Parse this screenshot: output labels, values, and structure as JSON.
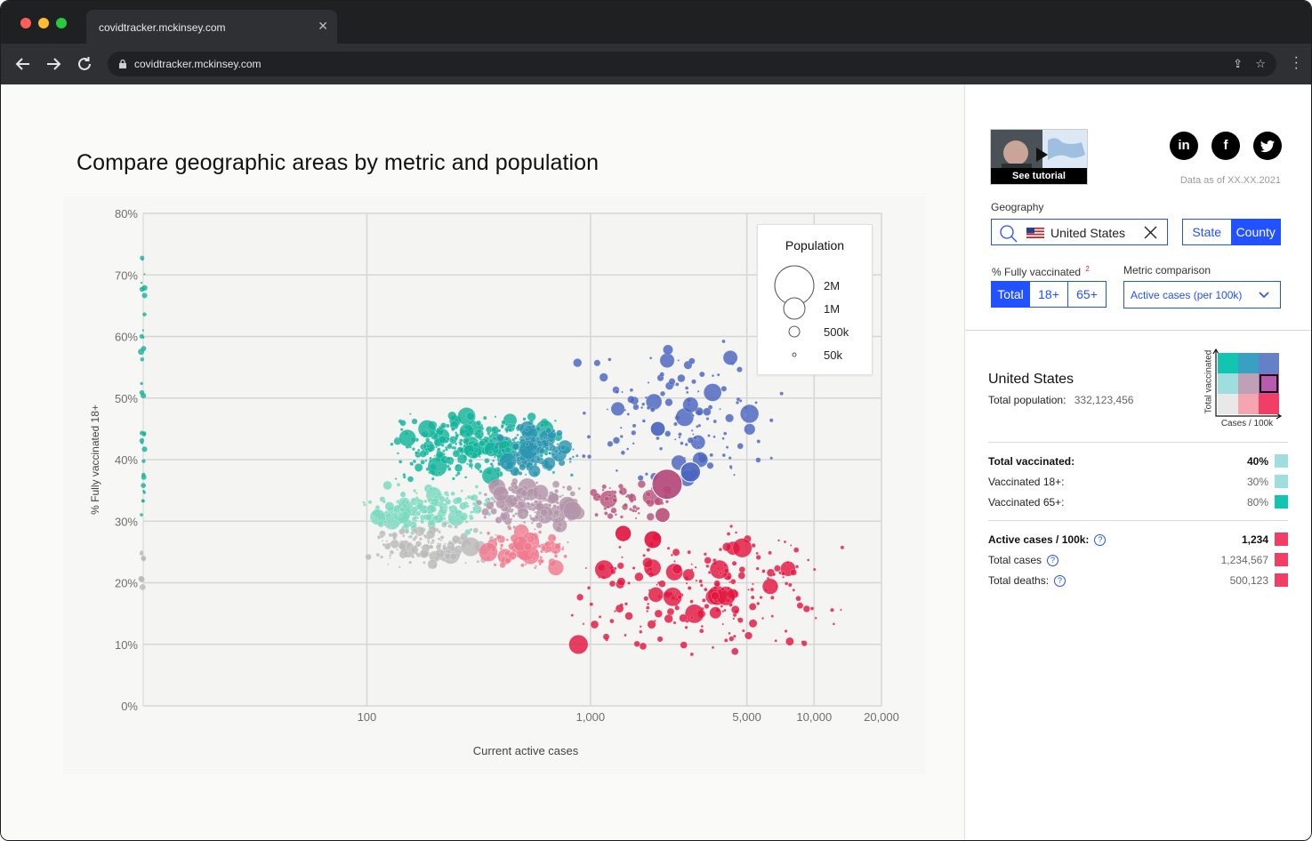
{
  "browser": {
    "tab_title": "covidtracker.mckinsey.com",
    "url": "covidtracker.mckinsey.com",
    "colors": {
      "close_dot": "#ff5f57",
      "min_dot": "#febc2e",
      "max_dot": "#28c840"
    }
  },
  "page": {
    "title": "Compare geographic areas by metric and population"
  },
  "chart_data": {
    "type": "scatter",
    "title": "Compare geographic areas by metric and population",
    "xlabel": "Current active cases",
    "ylabel": "% Fully vaccinated 18+",
    "x_scale": "log",
    "xlim": [
      10,
      20000
    ],
    "ylim": [
      0,
      80
    ],
    "x_ticks": [
      {
        "value": 100,
        "label": "100"
      },
      {
        "value": 1000,
        "label": "1,000"
      },
      {
        "value": 5000,
        "label": "5,000"
      },
      {
        "value": 10000,
        "label": "10,000"
      },
      {
        "value": 20000,
        "label": "20,000"
      }
    ],
    "y_ticks": [
      {
        "value": 0,
        "label": "0%"
      },
      {
        "value": 10,
        "label": "10%"
      },
      {
        "value": 20,
        "label": "20%"
      },
      {
        "value": 30,
        "label": "30%"
      },
      {
        "value": 40,
        "label": "40%"
      },
      {
        "value": 50,
        "label": "50%"
      },
      {
        "value": 60,
        "label": "60%"
      },
      {
        "value": 70,
        "label": "70%"
      },
      {
        "value": 80,
        "label": "80%"
      }
    ],
    "grid": true,
    "legend": {
      "title": "Population",
      "placement": "top-right",
      "items": [
        {
          "label": "2M",
          "population": 2000000
        },
        {
          "label": "1M",
          "population": 1000000
        },
        {
          "label": "500k",
          "population": 500000
        },
        {
          "label": "50k",
          "population": 50000
        }
      ]
    },
    "clusters": [
      {
        "name": "high-vax-low-cases",
        "color": "#10b39a",
        "x_range": [
          120,
          800
        ],
        "y_range": [
          36,
          48
        ],
        "n": 330
      },
      {
        "name": "high-vax-mid-cases",
        "color": "#2b95b0",
        "x_range": [
          350,
          900
        ],
        "y_range": [
          37,
          46
        ],
        "n": 140
      },
      {
        "name": "high-vax-high-cases",
        "color": "#4a64c0",
        "x_range": [
          800,
          8000
        ],
        "y_range": [
          35,
          60
        ],
        "n": 140
      },
      {
        "name": "mid-vax-low-cases",
        "color": "#7ad9bf",
        "x_range": [
          90,
          380
        ],
        "y_range": [
          28,
          36
        ],
        "n": 220
      },
      {
        "name": "mid-vax-mid-cases",
        "color": "#b294a8",
        "x_range": [
          300,
          950
        ],
        "y_range": [
          28,
          37
        ],
        "n": 200
      },
      {
        "name": "mid-vax-high-cases",
        "color": "#b8527a",
        "x_range": [
          900,
          2500
        ],
        "y_range": [
          30,
          37
        ],
        "n": 60
      },
      {
        "name": "low-vax-low-cases",
        "color": "#b9b9b9",
        "x_range": [
          90,
          400
        ],
        "y_range": [
          22,
          30
        ],
        "n": 160
      },
      {
        "name": "low-vax-mid-cases",
        "color": "#ef7a8f",
        "x_range": [
          300,
          900
        ],
        "y_range": [
          22,
          29
        ],
        "n": 120
      },
      {
        "name": "low-vax-high-cases",
        "color": "#e3163f",
        "x_range": [
          700,
          15000
        ],
        "y_range": [
          8,
          30
        ],
        "n": 230
      }
    ],
    "highlighted": [
      {
        "x": 2200,
        "y": 36,
        "population": 2000000,
        "color": "#b4487a"
      },
      {
        "x": 1900,
        "y": 27,
        "population": 500000,
        "color": "#e3163f"
      },
      {
        "x": 1400,
        "y": 28,
        "population": 400000,
        "color": "#e3163f"
      },
      {
        "x": 2100,
        "y": 31,
        "population": 300000,
        "color": "#b8527a"
      },
      {
        "x": 2800,
        "y": 38,
        "population": 700000,
        "color": "#4a64c0"
      },
      {
        "x": 2000,
        "y": 45,
        "population": 300000,
        "color": "#4a64c0"
      }
    ]
  },
  "sidebar": {
    "tutorial_label": "See tutorial",
    "social": [
      {
        "name": "linkedin",
        "glyph": "in"
      },
      {
        "name": "facebook",
        "glyph": "f"
      },
      {
        "name": "twitter",
        "glyph": "t"
      }
    ],
    "data_as_of": "Data as of XX.XX.2021",
    "geography_label": "Geography",
    "geography_value": "United States",
    "geo_level": {
      "options": [
        "State",
        "County"
      ],
      "selected": "County"
    },
    "vaccinated_label": "% Fully vaccinated",
    "vaccinated_footnote": "2",
    "vaccinated_options": [
      "Total",
      "18+",
      "65+"
    ],
    "vaccinated_selected": "Total",
    "metric_label": "Metric comparison",
    "metric_value": "Active cases (per 100k)",
    "region_name": "United States",
    "population_label": "Total population:",
    "population_value": "332,123,456",
    "matrix": {
      "y_label": "Total vaccinated",
      "x_label": "Cases / 100k",
      "cells": [
        [
          "#13c4b3",
          "#3aa0c3",
          "#6480c8"
        ],
        [
          "#9fdede",
          "#bfa1b7",
          "#b95bac"
        ],
        [
          "#e8e8e8",
          "#f5a4b0",
          "#f23e65"
        ]
      ],
      "selected_row": 1,
      "selected_col": 2
    },
    "vax_stats": [
      {
        "label": "Total vaccinated:",
        "value": "40%",
        "color": "#9fdede",
        "bold": true,
        "help": false
      },
      {
        "label": "Vaccinated 18+:",
        "value": "30%",
        "color": "#9fdede",
        "bold": false,
        "help": false
      },
      {
        "label": "Vaccinated 65+:",
        "value": "80%",
        "color": "#13c4b3",
        "bold": false,
        "help": false
      }
    ],
    "case_stats": [
      {
        "label": "Active cases / 100k:",
        "value": "1,234",
        "color": "#f23e65",
        "bold": true,
        "help": true
      },
      {
        "label": "Total cases",
        "value": "1,234,567",
        "color": "#f23e65",
        "bold": false,
        "help": true
      },
      {
        "label": "Total deaths:",
        "value": "500,123",
        "color": "#f23e65",
        "bold": false,
        "help": true
      }
    ],
    "colors": {
      "accent": "#2251ff"
    }
  }
}
